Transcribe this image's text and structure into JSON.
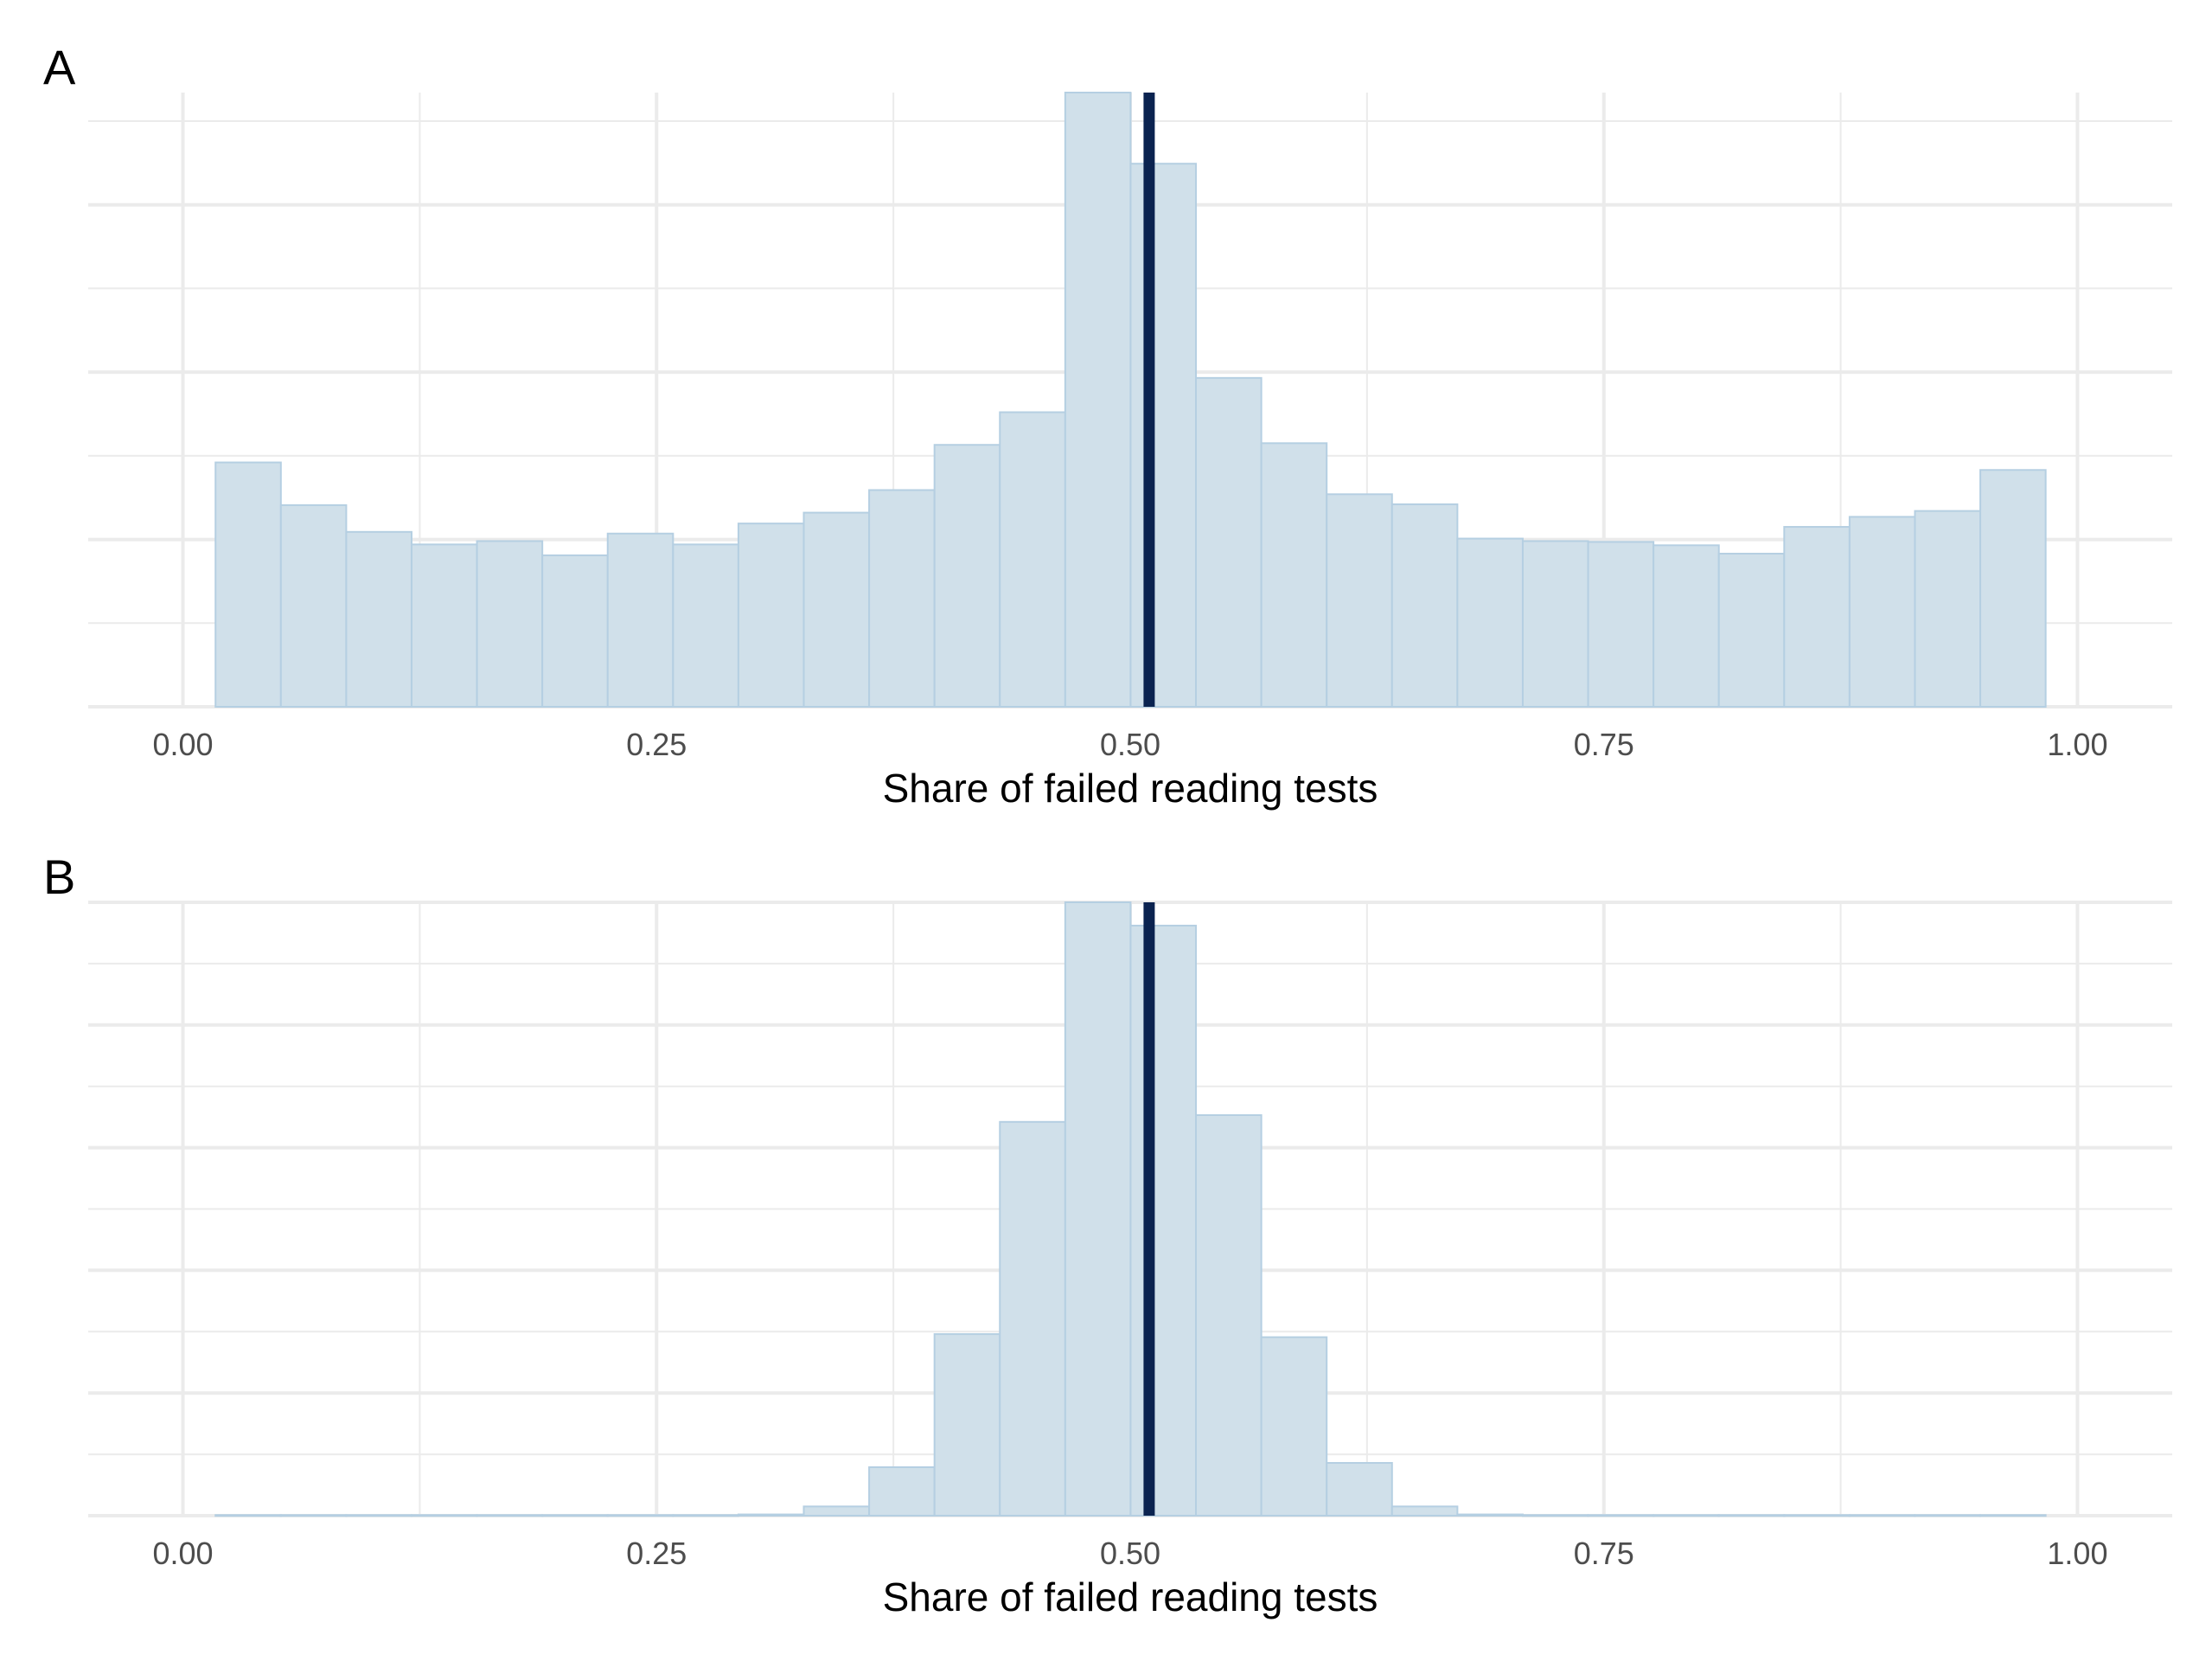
{
  "colors": {
    "bar_fill": "#d0e0ea",
    "bar_stroke": "#b5cfe2",
    "ref_line": "#0b2350",
    "grid": "#ebebeb",
    "tick_text": "#4d4d4d"
  },
  "chart_data": [
    {
      "type": "bar",
      "panel_label": "A",
      "xlabel": "Share of failed reading tests",
      "ylabel": "",
      "xlim": [
        -0.05,
        1.05
      ],
      "ylim": [
        0,
        7.34
      ],
      "x_ticks": [
        0.0,
        0.25,
        0.5,
        0.75,
        1.0
      ],
      "x_tick_labels": [
        "0.00",
        "0.25",
        "0.50",
        "0.75",
        "1.00"
      ],
      "y_tick_labels": [],
      "grid": true,
      "reference_line_x": 0.51,
      "bins": {
        "start": 0.0172,
        "width": 0.0345,
        "counts": [
          2.92,
          2.41,
          2.09,
          1.94,
          1.98,
          1.81,
          2.07,
          1.94,
          2.19,
          2.32,
          2.59,
          3.13,
          3.52,
          7.34,
          6.49,
          3.93,
          3.15,
          2.54,
          2.42,
          2.01,
          1.98,
          1.97,
          1.93,
          1.83,
          2.15,
          2.27,
          2.34,
          2.83
        ]
      }
    },
    {
      "type": "bar",
      "panel_label": "B",
      "xlabel": "Share of failed reading tests",
      "ylabel": "",
      "xlim": [
        -0.05,
        1.05
      ],
      "ylim": [
        0,
        10
      ],
      "x_ticks": [
        0.0,
        0.25,
        0.5,
        0.75,
        1.0
      ],
      "x_tick_labels": [
        "0.00",
        "0.25",
        "0.50",
        "0.75",
        "1.00"
      ],
      "y_tick_labels": [],
      "grid": true,
      "reference_line_x": 0.51,
      "bins": {
        "start": 0.0172,
        "width": 0.0345,
        "counts": [
          0.01,
          0.01,
          0.01,
          0.01,
          0.01,
          0.01,
          0.01,
          0.01,
          0.02,
          0.15,
          0.79,
          2.96,
          6.42,
          10.0,
          9.62,
          6.53,
          2.91,
          0.86,
          0.15,
          0.02,
          0.01,
          0.01,
          0.01,
          0.01,
          0.01,
          0.01,
          0.01,
          0.01
        ]
      }
    }
  ]
}
